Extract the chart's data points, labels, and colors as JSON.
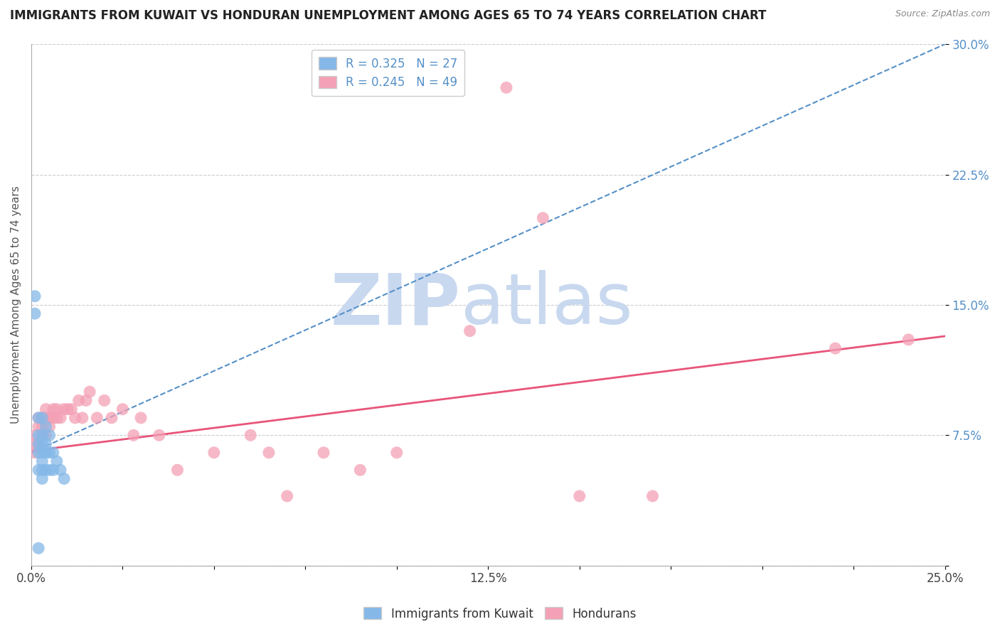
{
  "title": "IMMIGRANTS FROM KUWAIT VS HONDURAN UNEMPLOYMENT AMONG AGES 65 TO 74 YEARS CORRELATION CHART",
  "source_text": "Source: ZipAtlas.com",
  "ylabel": "Unemployment Among Ages 65 to 74 years",
  "xlim": [
    0.0,
    0.25
  ],
  "ylim": [
    0.0,
    0.3
  ],
  "yticks": [
    0.0,
    0.075,
    0.15,
    0.225,
    0.3
  ],
  "ytick_labels": [
    "",
    "7.5%",
    "15.0%",
    "22.5%",
    "30.0%"
  ],
  "xtick_vals": [
    0.0,
    0.125,
    0.25
  ],
  "xtick_labels": [
    "0.0%",
    "12.5%",
    "25.0%"
  ],
  "blue_R": 0.325,
  "blue_N": 27,
  "pink_R": 0.245,
  "pink_N": 49,
  "blue_color": "#85b8e8",
  "pink_color": "#f4a0b5",
  "trend_blue_color": "#5590c8",
  "trend_pink_color": "#e8547a",
  "legend_label_blue": "Immigrants from Kuwait",
  "legend_label_pink": "Hondurans",
  "watermark_zip": "ZIP",
  "watermark_atlas": "atlas",
  "watermark_color": "#c8d8ef",
  "title_fontsize": 12,
  "axis_label_fontsize": 11,
  "tick_fontsize": 12,
  "legend_fontsize": 12,
  "blue_scatter_x": [
    0.001,
    0.001,
    0.002,
    0.002,
    0.002,
    0.002,
    0.002,
    0.003,
    0.003,
    0.003,
    0.003,
    0.003,
    0.003,
    0.003,
    0.004,
    0.004,
    0.004,
    0.004,
    0.005,
    0.005,
    0.005,
    0.006,
    0.006,
    0.007,
    0.008,
    0.009,
    0.002
  ],
  "blue_scatter_y": [
    0.155,
    0.145,
    0.085,
    0.075,
    0.07,
    0.065,
    0.055,
    0.085,
    0.075,
    0.07,
    0.065,
    0.06,
    0.055,
    0.05,
    0.08,
    0.07,
    0.065,
    0.055,
    0.075,
    0.065,
    0.055,
    0.065,
    0.055,
    0.06,
    0.055,
    0.05,
    0.01
  ],
  "pink_scatter_x": [
    0.001,
    0.001,
    0.001,
    0.002,
    0.002,
    0.002,
    0.003,
    0.003,
    0.003,
    0.004,
    0.004,
    0.004,
    0.005,
    0.005,
    0.006,
    0.006,
    0.007,
    0.007,
    0.008,
    0.009,
    0.01,
    0.011,
    0.012,
    0.013,
    0.014,
    0.015,
    0.016,
    0.018,
    0.02,
    0.022,
    0.025,
    0.028,
    0.03,
    0.035,
    0.04,
    0.05,
    0.06,
    0.065,
    0.07,
    0.08,
    0.09,
    0.1,
    0.12,
    0.13,
    0.14,
    0.15,
    0.17,
    0.22,
    0.24
  ],
  "pink_scatter_y": [
    0.075,
    0.07,
    0.065,
    0.085,
    0.08,
    0.07,
    0.085,
    0.08,
    0.075,
    0.09,
    0.085,
    0.075,
    0.085,
    0.08,
    0.09,
    0.085,
    0.09,
    0.085,
    0.085,
    0.09,
    0.09,
    0.09,
    0.085,
    0.095,
    0.085,
    0.095,
    0.1,
    0.085,
    0.095,
    0.085,
    0.09,
    0.075,
    0.085,
    0.075,
    0.055,
    0.065,
    0.075,
    0.065,
    0.04,
    0.065,
    0.055,
    0.065,
    0.135,
    0.275,
    0.2,
    0.04,
    0.04,
    0.125,
    0.13
  ],
  "blue_trendline_x": [
    0.0,
    0.25
  ],
  "blue_trendline_y": [
    0.065,
    0.3
  ],
  "pink_trendline_x": [
    0.0,
    0.25
  ],
  "pink_trendline_y": [
    0.066,
    0.132
  ]
}
